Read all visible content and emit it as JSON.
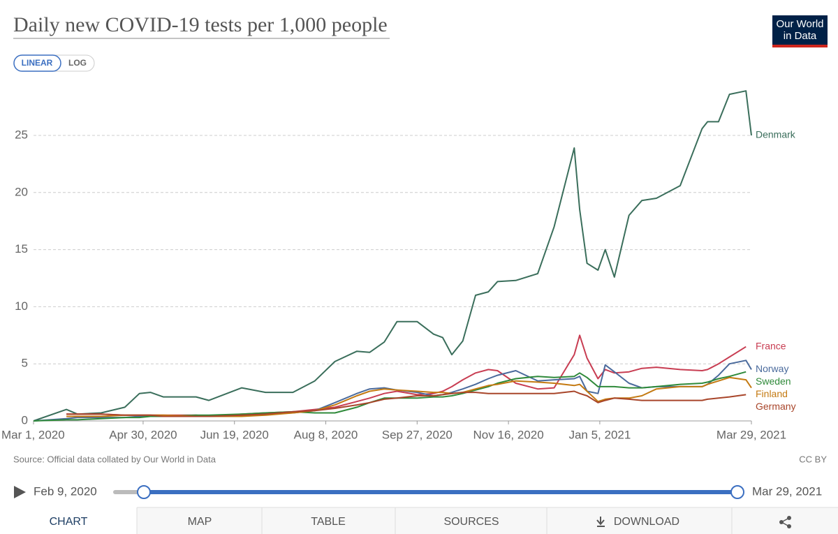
{
  "chart_data": {
    "type": "line",
    "title": "Daily new COVID-19 tests per 1,000 people",
    "x": [
      "2020-03-01",
      "2020-03-19",
      "2020-03-25",
      "2020-04-07",
      "2020-04-20",
      "2020-04-28",
      "2020-05-04",
      "2020-05-11",
      "2020-05-29",
      "2020-06-05",
      "2020-06-23",
      "2020-07-06",
      "2020-07-21",
      "2020-08-02",
      "2020-08-13",
      "2020-08-25",
      "2020-09-01",
      "2020-09-09",
      "2020-09-16",
      "2020-09-27",
      "2020-10-06",
      "2020-10-11",
      "2020-10-16",
      "2020-10-22",
      "2020-10-29",
      "2020-11-05",
      "2020-11-10",
      "2020-11-20",
      "2020-12-02",
      "2020-12-11",
      "2020-12-22",
      "2020-12-25",
      "2020-12-29",
      "2021-01-04",
      "2021-01-08",
      "2021-01-13",
      "2021-01-21",
      "2021-01-28",
      "2021-02-05",
      "2021-02-18",
      "2021-03-02",
      "2021-03-05",
      "2021-03-11",
      "2021-03-17",
      "2021-03-26",
      "2021-03-29"
    ],
    "series": [
      {
        "name": "Denmark",
        "color": "#3a6e5b",
        "values": [
          0,
          1.0,
          0.6,
          0.7,
          1.2,
          2.4,
          2.5,
          2.1,
          2.1,
          1.8,
          2.9,
          2.5,
          2.5,
          3.5,
          5.2,
          6.1,
          6.0,
          6.9,
          8.7,
          8.7,
          7.6,
          7.3,
          5.8,
          7.0,
          11.0,
          11.3,
          12.2,
          12.3,
          12.9,
          17.0,
          23.9,
          18.5,
          13.8,
          13.2,
          15.0,
          12.6,
          18.0,
          19.3,
          19.5,
          20.6,
          25.6,
          26.2,
          26.2,
          28.6,
          28.9,
          25.0
        ]
      },
      {
        "name": "France",
        "color": "#c83d52",
        "values": [
          null,
          0.6,
          0.6,
          0.6,
          0.5,
          0.5,
          0.5,
          0.5,
          0.5,
          0.4,
          0.6,
          0.7,
          0.8,
          1.0,
          1.2,
          1.7,
          2.0,
          2.4,
          2.6,
          2.3,
          2.4,
          2.6,
          3.0,
          3.6,
          4.2,
          4.5,
          4.4,
          3.3,
          2.8,
          2.9,
          5.8,
          7.5,
          5.5,
          3.7,
          4.5,
          4.2,
          4.3,
          4.6,
          4.7,
          4.5,
          4.4,
          4.5,
          5.0,
          5.6,
          6.5,
          null
        ]
      },
      {
        "name": "Norway",
        "color": "#4a6a9c",
        "values": [
          0.0,
          0.2,
          0.3,
          0.3,
          0.3,
          0.4,
          0.4,
          0.4,
          0.4,
          0.4,
          0.5,
          0.6,
          0.7,
          0.9,
          1.6,
          2.4,
          2.8,
          2.9,
          2.7,
          2.5,
          2.2,
          2.3,
          2.5,
          2.8,
          3.2,
          3.7,
          4.0,
          4.4,
          3.5,
          3.6,
          3.7,
          3.9,
          2.6,
          2.4,
          4.9,
          4.3,
          3.3,
          2.9,
          3.0,
          3.0,
          3.0,
          3.2,
          4.0,
          5.0,
          5.3,
          4.5
        ]
      },
      {
        "name": "Sweden",
        "color": "#2f8a3a",
        "values": [
          0.0,
          0.1,
          0.1,
          0.2,
          0.3,
          0.3,
          0.4,
          0.4,
          0.5,
          0.5,
          0.6,
          0.7,
          0.8,
          0.7,
          0.7,
          1.2,
          1.6,
          2.0,
          2.0,
          2.0,
          2.1,
          2.1,
          2.2,
          2.4,
          2.7,
          3.0,
          3.3,
          3.7,
          3.9,
          3.8,
          3.9,
          4.2,
          3.8,
          3.0,
          3.0,
          3.0,
          2.9,
          2.9,
          3.0,
          3.2,
          3.3,
          3.4,
          3.7,
          3.9,
          4.3,
          null
        ]
      },
      {
        "name": "Finland",
        "color": "#c47a12",
        "values": [
          null,
          0.4,
          0.4,
          0.4,
          0.5,
          0.5,
          0.5,
          0.5,
          0.4,
          0.4,
          0.4,
          0.5,
          0.7,
          0.9,
          1.4,
          2.2,
          2.6,
          2.8,
          2.7,
          2.6,
          2.5,
          2.5,
          2.4,
          2.5,
          2.8,
          3.1,
          3.2,
          3.5,
          3.4,
          3.3,
          3.1,
          3.2,
          2.6,
          1.7,
          1.9,
          2.0,
          2.0,
          2.2,
          2.8,
          3.0,
          3.0,
          3.2,
          3.5,
          3.8,
          3.6,
          2.9
        ]
      },
      {
        "name": "Germany",
        "color": "#a8452a",
        "values": [
          null,
          0.6,
          0.6,
          0.6,
          0.5,
          0.5,
          0.5,
          0.4,
          0.4,
          0.4,
          0.5,
          0.6,
          0.8,
          0.9,
          1.1,
          1.4,
          1.6,
          1.9,
          2.0,
          2.2,
          2.2,
          2.3,
          2.4,
          2.5,
          2.5,
          2.4,
          2.4,
          2.4,
          2.4,
          2.4,
          2.6,
          2.4,
          2.2,
          1.6,
          1.8,
          2.0,
          1.9,
          1.8,
          1.8,
          1.8,
          1.8,
          1.9,
          2.0,
          2.1,
          2.3,
          null
        ]
      }
    ],
    "xlim": [
      "2020-03-01",
      "2021-03-29"
    ],
    "xticks": [
      {
        "value": "2020-03-01",
        "label": "Mar 1, 2020"
      },
      {
        "value": "2020-04-30",
        "label": "Apr 30, 2020"
      },
      {
        "value": "2020-06-19",
        "label": "Jun 19, 2020"
      },
      {
        "value": "2020-08-08",
        "label": "Aug 8, 2020"
      },
      {
        "value": "2020-09-27",
        "label": "Sep 27, 2020"
      },
      {
        "value": "2020-11-16",
        "label": "Nov 16, 2020"
      },
      {
        "value": "2021-01-05",
        "label": "Jan 5, 2021"
      },
      {
        "value": "2021-03-29",
        "label": "Mar 29, 2021"
      }
    ],
    "ylim": [
      0,
      30
    ],
    "yticks": [
      0,
      5,
      10,
      15,
      20,
      25
    ],
    "grid": true,
    "source": "Source: Official data collated by Our World in Data",
    "license": "CC BY"
  },
  "ui": {
    "logo": [
      "Our World",
      "in Data"
    ],
    "scale_buttons": [
      "LINEAR",
      "LOG"
    ],
    "timeline": {
      "start": "Feb 9, 2020",
      "end": "Mar 29, 2021"
    },
    "tabs": [
      "CHART",
      "MAP",
      "TABLE",
      "SOURCES",
      "DOWNLOAD"
    ]
  }
}
